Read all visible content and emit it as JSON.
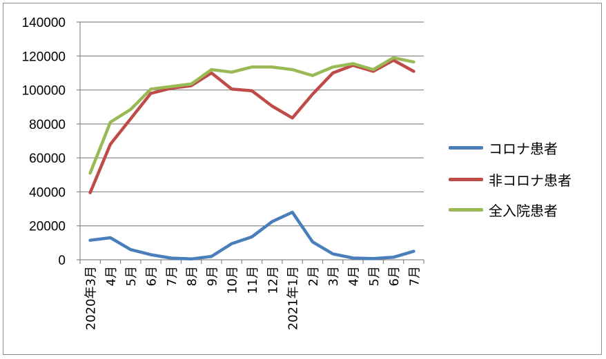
{
  "chart_data": {
    "type": "line",
    "categories": [
      "2020年3月",
      "4月",
      "5月",
      "6月",
      "7月",
      "8月",
      "9月",
      "10月",
      "11月",
      "12月",
      "2021年1月",
      "2月",
      "3月",
      "4月",
      "5月",
      "6月",
      "7月"
    ],
    "series": [
      {
        "name": "コロナ患者",
        "color": "#4a7ebb",
        "values": [
          11500,
          13000,
          6000,
          3000,
          1000,
          500,
          2000,
          9500,
          13500,
          22500,
          28000,
          10500,
          3500,
          1000,
          700,
          1500,
          5000
        ]
      },
      {
        "name": "非コロナ患者",
        "color": "#be4b48",
        "values": [
          39500,
          68000,
          83000,
          98000,
          101000,
          102500,
          110000,
          100500,
          99500,
          90500,
          83500,
          97500,
          110000,
          114500,
          111000,
          117500,
          111000
        ]
      },
      {
        "name": "全入院患者",
        "color": "#98b954",
        "values": [
          51000,
          81000,
          88500,
          100500,
          102000,
          103500,
          112000,
          110500,
          113500,
          113500,
          112000,
          108500,
          113500,
          115500,
          112000,
          119000,
          116500
        ]
      }
    ],
    "ylim": [
      0,
      140000
    ],
    "yticks": [
      "0",
      "20000",
      "40000",
      "60000",
      "80000",
      "100000",
      "120000",
      "140000"
    ],
    "grid": true,
    "legend": "right",
    "title": "",
    "xlabel": "",
    "ylabel": ""
  }
}
